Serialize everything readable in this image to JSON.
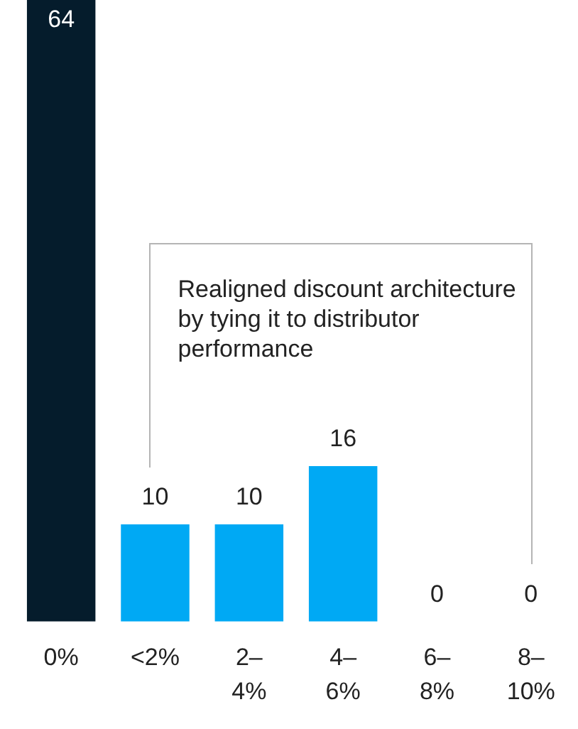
{
  "chart_data": {
    "type": "bar",
    "categories": [
      "0%",
      "<2%",
      "2–4%",
      "4–6%",
      "6–8%",
      "8–10%"
    ],
    "values": [
      64,
      10,
      10,
      16,
      0,
      0
    ],
    "colors": [
      "#051c2c",
      "#00a9f4",
      "#00a9f4",
      "#00a9f4",
      "#00a9f4",
      "#00a9f4"
    ],
    "data_labels": true,
    "grid": false,
    "legend": false,
    "tick_labels": "x",
    "annotations": [
      "Realigned discount architecture by tying it to distributor performance"
    ]
  }
}
